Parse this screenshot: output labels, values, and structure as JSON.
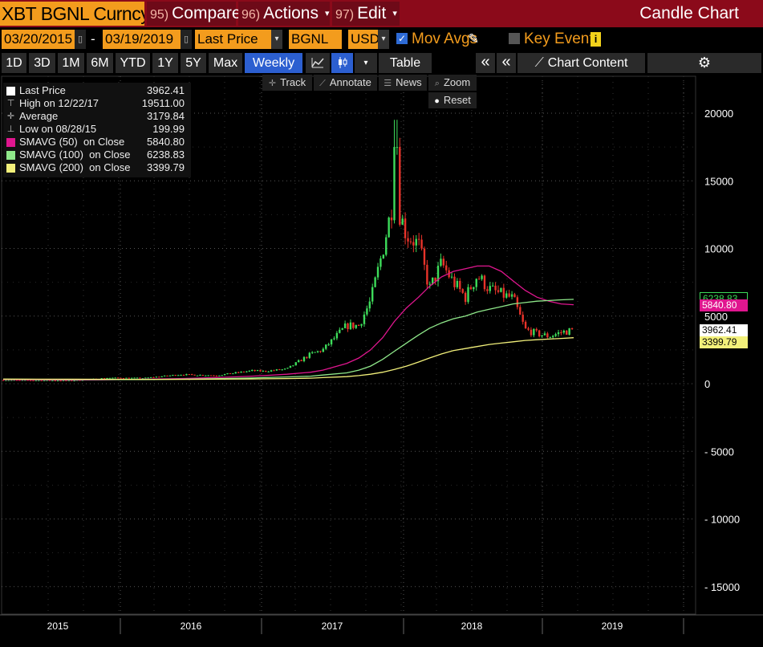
{
  "header": {
    "ticker": "XBT BGNL Curncy",
    "compare": {
      "num": "95)",
      "label": "Compare"
    },
    "actions": {
      "num": "96)",
      "label": "Actions"
    },
    "edit": {
      "num": "97)",
      "label": "Edit"
    },
    "window_title": "Candle Chart"
  },
  "controls": {
    "start_date": "03/20/2015",
    "separator": "-",
    "end_date": "03/19/2019",
    "price_field": "Last Price",
    "source": "BGNL",
    "currency": "USD",
    "mov_avgs_label": "Mov Avgs",
    "mov_avgs_checked": true,
    "key_events_label": "Key Events",
    "key_events_checked": false,
    "info_glyph": "i"
  },
  "periods": [
    "1D",
    "3D",
    "1M",
    "6M",
    "YTD",
    "1Y",
    "5Y",
    "Max"
  ],
  "frequency": "Weekly ▼",
  "view_icons": [
    "line-chart-icon",
    "candle-chart-icon",
    "dropdown-caret-icon"
  ],
  "table_label": "Table",
  "collapse_glyph": "«",
  "expand_glyph": "«",
  "chart_content_label": "Chart Content",
  "settings_glyph": "⚙",
  "chart_tools": {
    "track": "Track",
    "annotate": "Annotate",
    "news": "News",
    "zoom": "Zoom",
    "reset": "Reset"
  },
  "legend": [
    {
      "name": "Last Price",
      "value": "3962.41",
      "color": "#ffffff",
      "kind": "box"
    },
    {
      "name": "High on 12/22/17",
      "value": "19511.00",
      "color": "#bbbbbb",
      "kind": "high"
    },
    {
      "name": "Average",
      "value": "3179.84",
      "color": "#bbbbbb",
      "kind": "avg"
    },
    {
      "name": "Low on 08/28/15",
      "value": "199.99",
      "color": "#bbbbbb",
      "kind": "low"
    },
    {
      "name": "SMAVG (50)  on Close",
      "value": "5840.80",
      "color": "#e0168f",
      "kind": "box"
    },
    {
      "name": "SMAVG (100)  on Close",
      "value": "6238.83",
      "color": "#8fe88a",
      "kind": "box"
    },
    {
      "name": "SMAVG (200)  on Close",
      "value": "3399.79",
      "color": "#f2f07a",
      "kind": "box"
    }
  ],
  "value_tags": [
    {
      "label": "6238.83",
      "color": "#3ddc5a",
      "text_color": "#3ddc5a",
      "value": 6238.83
    },
    {
      "label": "5840.80",
      "color": "#e0168f",
      "text_color": "#ffffff",
      "value": 5840.8
    },
    {
      "label": "3962.41",
      "color": "#ffffff",
      "text_color": "#000000",
      "value": 3962.41
    },
    {
      "label": "3399.79",
      "color": "#f2f07a",
      "text_color": "#000000",
      "value": 3399.79
    }
  ],
  "chart_data": {
    "type": "candlestick",
    "title": "",
    "xlabel": "",
    "ylabel": "",
    "ylim": [
      -16500,
      22500
    ],
    "y_ticks": [
      20000,
      15000,
      10000,
      5000,
      0,
      -5000,
      -10000,
      -15000
    ],
    "x_ticks": [
      "2015",
      "2016",
      "2017",
      "2018",
      "2019"
    ],
    "x_range": [
      "2015-03-20",
      "2019-03-19"
    ],
    "grid": true,
    "up_color": "#3ddc5a",
    "down_color": "#e8332a",
    "series": [
      {
        "name": "Last Price",
        "dates": [
          "2015-03",
          "2015-06",
          "2015-09",
          "2015-12",
          "2016-03",
          "2016-06",
          "2016-09",
          "2016-12",
          "2017-01",
          "2017-03",
          "2017-05",
          "2017-06",
          "2017-08",
          "2017-09",
          "2017-10",
          "2017-11",
          "2017-12",
          "2018-01",
          "2018-02",
          "2018-03",
          "2018-04",
          "2018-05",
          "2018-06",
          "2018-07",
          "2018-08",
          "2018-09",
          "2018-10",
          "2018-11",
          "2018-12",
          "2019-01",
          "2019-02",
          "2019-03"
        ],
        "values": [
          270,
          250,
          230,
          430,
          415,
          680,
          610,
          960,
          920,
          1080,
          2200,
          2500,
          4300,
          4300,
          6100,
          9800,
          14000,
          11000,
          10300,
          7000,
          8900,
          7500,
          6400,
          8000,
          7000,
          6600,
          6300,
          4000,
          3700,
          3500,
          3800,
          3962
        ]
      },
      {
        "name": "SMAVG (50)",
        "values": [
          300,
          290,
          270,
          290,
          330,
          380,
          450,
          560,
          600,
          700,
          850,
          1000,
          1500,
          1900,
          2500,
          3400,
          4600,
          5600,
          6400,
          7200,
          7900,
          8300,
          8500,
          8700,
          8700,
          8300,
          7600,
          6900,
          6400,
          6100,
          5900,
          5841
        ]
      },
      {
        "name": "SMAVG (100)",
        "values": [
          330,
          320,
          300,
          300,
          310,
          330,
          370,
          420,
          450,
          500,
          560,
          640,
          800,
          1000,
          1300,
          1800,
          2400,
          3000,
          3600,
          4100,
          4500,
          4800,
          5000,
          5300,
          5500,
          5700,
          5900,
          6000,
          6100,
          6150,
          6200,
          6239
        ]
      },
      {
        "name": "SMAVG (200)",
        "values": [
          340,
          335,
          330,
          325,
          320,
          320,
          330,
          350,
          360,
          380,
          410,
          450,
          520,
          600,
          700,
          850,
          1050,
          1300,
          1600,
          1900,
          2200,
          2450,
          2600,
          2750,
          2900,
          3000,
          3100,
          3200,
          3250,
          3300,
          3350,
          3400
        ]
      }
    ]
  }
}
